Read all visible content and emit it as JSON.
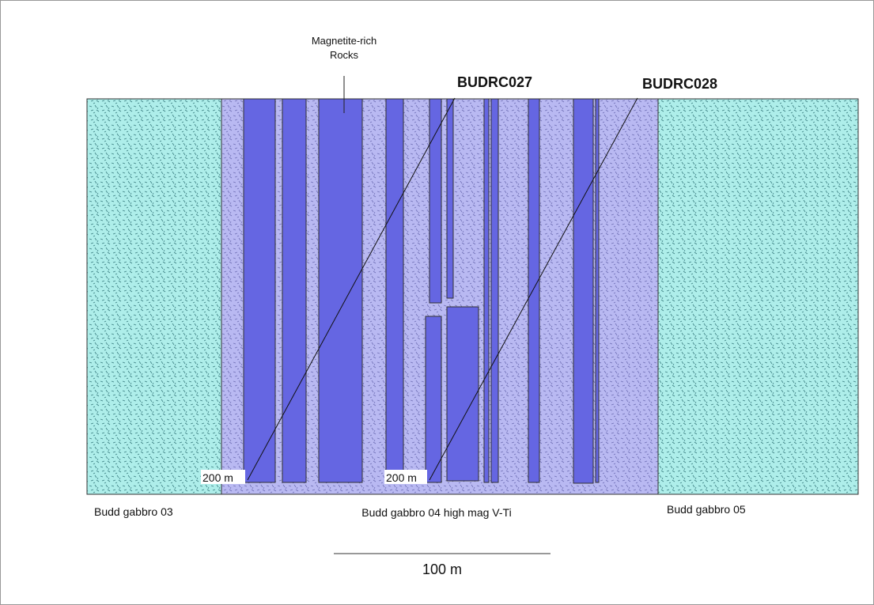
{
  "annotation": {
    "line1": "Magnetite-rich",
    "line2": "Rocks"
  },
  "drill_holes": [
    {
      "name": "BUDRC027",
      "depth_label": "200 m"
    },
    {
      "name": "BUDRC028",
      "depth_label": "200 m"
    }
  ],
  "units": [
    {
      "label": "Budd gabbro 03"
    },
    {
      "label": "Budd gabbro 04 high mag V-Ti"
    },
    {
      "label": "Budd gabbro 05"
    }
  ],
  "scale_bar": {
    "label": "100 m"
  }
}
